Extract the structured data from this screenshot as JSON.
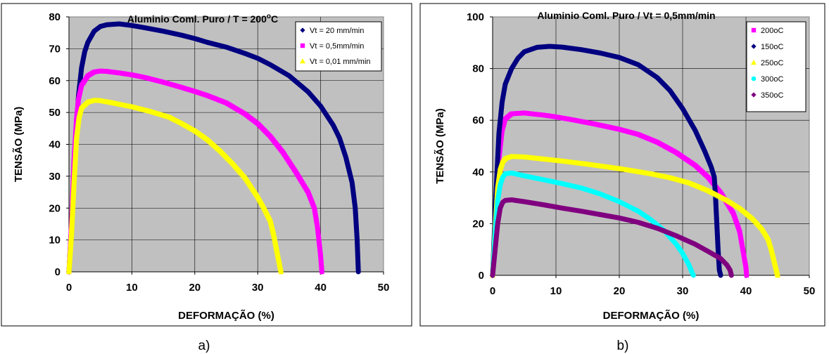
{
  "chart_data": [
    {
      "type": "line",
      "title_main": "Aluminio Coml. Puro /   T = 200",
      "title_sup": "o",
      "title_end": "C",
      "xlabel": "DEFORMAÇÃO (%)",
      "ylabel": "TENSÃO (MPa)",
      "xlim": [
        0,
        50
      ],
      "ylim": [
        0,
        80
      ],
      "xticks": [
        0,
        10,
        20,
        30,
        40,
        50
      ],
      "yticks": [
        0,
        10,
        20,
        30,
        40,
        50,
        60,
        70,
        80
      ],
      "grid": true,
      "legend_position": "top-right",
      "panel_label": "a)",
      "series": [
        {
          "name": "Vt = 20 mm/min",
          "color": "#000080",
          "marker": "diamond",
          "points": [
            [
              0,
              0
            ],
            [
              0.5,
              18
            ],
            [
              1,
              38
            ],
            [
              1.5,
              55
            ],
            [
              2,
              64
            ],
            [
              2.5,
              69
            ],
            [
              3,
              72
            ],
            [
              4,
              75.5
            ],
            [
              5,
              77
            ],
            [
              6,
              77.5
            ],
            [
              8,
              77.8
            ],
            [
              10,
              77.3
            ],
            [
              12,
              76.6
            ],
            [
              15,
              75.5
            ],
            [
              18,
              74.2
            ],
            [
              20,
              73.2
            ],
            [
              22,
              72
            ],
            [
              25,
              70.5
            ],
            [
              28,
              68.5
            ],
            [
              30,
              67
            ],
            [
              32,
              65
            ],
            [
              35,
              61.5
            ],
            [
              38,
              56.5
            ],
            [
              40,
              52
            ],
            [
              42,
              46
            ],
            [
              43,
              42
            ],
            [
              44,
              36
            ],
            [
              45,
              28
            ],
            [
              45.5,
              20
            ],
            [
              45.8,
              10
            ],
            [
              46,
              0
            ]
          ]
        },
        {
          "name": "Vt = 0,5mm/min",
          "color": "#ff00ff",
          "marker": "square",
          "points": [
            [
              0,
              0
            ],
            [
              0.4,
              15
            ],
            [
              0.8,
              35
            ],
            [
              1.2,
              48
            ],
            [
              1.5,
              54
            ],
            [
              2,
              58.5
            ],
            [
              3,
              61.5
            ],
            [
              4,
              62.7
            ],
            [
              5,
              63
            ],
            [
              6,
              62.9
            ],
            [
              8,
              62.4
            ],
            [
              10,
              61.8
            ],
            [
              12,
              61
            ],
            [
              15,
              59.5
            ],
            [
              18,
              57.8
            ],
            [
              20,
              56.6
            ],
            [
              22,
              55.3
            ],
            [
              25,
              53
            ],
            [
              28,
              49.5
            ],
            [
              30,
              46.5
            ],
            [
              32,
              42.5
            ],
            [
              34,
              37.5
            ],
            [
              36,
              31.5
            ],
            [
              38,
              25
            ],
            [
              39,
              20
            ],
            [
              39.5,
              14
            ],
            [
              40,
              5
            ],
            [
              40.2,
              0
            ]
          ]
        },
        {
          "name": "Vt = 0,01 mm/min",
          "color": "#ffff00",
          "marker": "triangle",
          "points": [
            [
              0,
              0
            ],
            [
              0.4,
              12
            ],
            [
              0.8,
              28
            ],
            [
              1.2,
              42
            ],
            [
              1.6,
              48.5
            ],
            [
              2,
              51.5
            ],
            [
              3,
              53.3
            ],
            [
              4,
              53.8
            ],
            [
              5,
              53.7
            ],
            [
              7,
              53
            ],
            [
              10,
              51.8
            ],
            [
              13,
              50.3
            ],
            [
              16,
              48.5
            ],
            [
              18,
              46.5
            ],
            [
              20,
              44.3
            ],
            [
              22,
              41.5
            ],
            [
              24,
              38
            ],
            [
              26,
              34
            ],
            [
              28,
              29.5
            ],
            [
              30,
              23.5
            ],
            [
              31,
              20
            ],
            [
              32,
              16
            ],
            [
              32.5,
              12
            ],
            [
              33,
              7
            ],
            [
              33.5,
              2
            ],
            [
              33.7,
              0
            ]
          ]
        }
      ]
    },
    {
      "type": "line",
      "title": "Aluminio Coml. Puro /   Vt = 0,5mm/min",
      "xlabel": "DEFORMAÇÃO (%)",
      "ylabel": "TENSÃO (MPa)",
      "xlim": [
        0,
        50
      ],
      "ylim": [
        0,
        100
      ],
      "xticks": [
        0,
        10,
        20,
        30,
        40,
        50
      ],
      "yticks": [
        0,
        20,
        40,
        60,
        80,
        100
      ],
      "grid": true,
      "legend_position": "top-right",
      "panel_label": "b)",
      "series": [
        {
          "name": "200oC",
          "color": "#ff00ff",
          "marker": "square",
          "points": [
            [
              0,
              0
            ],
            [
              0.5,
              22
            ],
            [
              1,
              45
            ],
            [
              1.5,
              56
            ],
            [
              2,
              60.5
            ],
            [
              3,
              62.5
            ],
            [
              5,
              62.8
            ],
            [
              8,
              62
            ],
            [
              10,
              61.3
            ],
            [
              13,
              60
            ],
            [
              16,
              58.6
            ],
            [
              20,
              56.5
            ],
            [
              23,
              54.5
            ],
            [
              26,
              51.5
            ],
            [
              29,
              47.5
            ],
            [
              32,
              42.5
            ],
            [
              34,
              38
            ],
            [
              36,
              32
            ],
            [
              38,
              24
            ],
            [
              39,
              17
            ],
            [
              39.5,
              10
            ],
            [
              40,
              3
            ],
            [
              40.1,
              0
            ]
          ]
        },
        {
          "name": "150oC",
          "color": "#000080",
          "marker": "diamond",
          "points": [
            [
              0,
              0
            ],
            [
              0.5,
              30
            ],
            [
              1,
              55
            ],
            [
              1.5,
              67
            ],
            [
              2,
              74
            ],
            [
              3,
              80
            ],
            [
              4,
              84
            ],
            [
              5,
              86.5
            ],
            [
              7,
              88.2
            ],
            [
              9,
              88.6
            ],
            [
              11,
              88.3
            ],
            [
              14,
              87.3
            ],
            [
              17,
              86
            ],
            [
              20,
              84.3
            ],
            [
              23,
              81.5
            ],
            [
              26,
              76.5
            ],
            [
              28,
              71.5
            ],
            [
              30,
              64.5
            ],
            [
              32,
              56
            ],
            [
              33.5,
              48
            ],
            [
              34.5,
              42
            ],
            [
              35,
              38
            ],
            [
              35.2,
              30
            ],
            [
              35.4,
              20
            ],
            [
              35.6,
              10
            ],
            [
              35.8,
              2
            ],
            [
              36,
              0
            ]
          ]
        },
        {
          "name": "250oC",
          "color": "#ffff00",
          "marker": "triangle",
          "points": [
            [
              0,
              0
            ],
            [
              0.4,
              18
            ],
            [
              0.8,
              34
            ],
            [
              1.2,
              41
            ],
            [
              1.6,
              44
            ],
            [
              2,
              45.2
            ],
            [
              3,
              46
            ],
            [
              5,
              45.8
            ],
            [
              8,
              45
            ],
            [
              11,
              44.2
            ],
            [
              15,
              43
            ],
            [
              20,
              41.3
            ],
            [
              25,
              39.3
            ],
            [
              28,
              37.8
            ],
            [
              31,
              35.8
            ],
            [
              34,
              32.8
            ],
            [
              37,
              29
            ],
            [
              39,
              26
            ],
            [
              41,
              22
            ],
            [
              42.5,
              18
            ],
            [
              43.5,
              14
            ],
            [
              44,
              10
            ],
            [
              44.5,
              5
            ],
            [
              44.8,
              2
            ],
            [
              45,
              0
            ]
          ]
        },
        {
          "name": "300oC",
          "color": "#00ffff",
          "marker": "circle",
          "points": [
            [
              0,
              0
            ],
            [
              0.4,
              16
            ],
            [
              0.8,
              29
            ],
            [
              1.2,
              35
            ],
            [
              1.6,
              38
            ],
            [
              2,
              39.3
            ],
            [
              3,
              39.6
            ],
            [
              5,
              38.5
            ],
            [
              8,
              37
            ],
            [
              11,
              35.5
            ],
            [
              14,
              33.8
            ],
            [
              17,
              31.5
            ],
            [
              20,
              28.5
            ],
            [
              23,
              24.8
            ],
            [
              25,
              21.5
            ],
            [
              27,
              17.5
            ],
            [
              29,
              12
            ],
            [
              30,
              8.5
            ],
            [
              31,
              4
            ],
            [
              31.5,
              1
            ],
            [
              31.7,
              0
            ]
          ]
        },
        {
          "name": "350oC",
          "color": "#800080",
          "marker": "diamond",
          "points": [
            [
              0,
              0
            ],
            [
              0.4,
              10
            ],
            [
              0.8,
              20
            ],
            [
              1.2,
              26
            ],
            [
              1.6,
              28.3
            ],
            [
              2,
              29
            ],
            [
              3,
              29.2
            ],
            [
              5,
              28.5
            ],
            [
              8,
              27.3
            ],
            [
              11,
              26
            ],
            [
              14,
              24.8
            ],
            [
              17,
              23.5
            ],
            [
              20,
              22.2
            ],
            [
              23,
              20.5
            ],
            [
              26,
              18.2
            ],
            [
              29,
              15.3
            ],
            [
              32,
              12
            ],
            [
              34,
              9.3
            ],
            [
              36,
              6.5
            ],
            [
              37,
              4
            ],
            [
              37.5,
              2
            ],
            [
              37.7,
              0
            ]
          ]
        }
      ]
    }
  ]
}
